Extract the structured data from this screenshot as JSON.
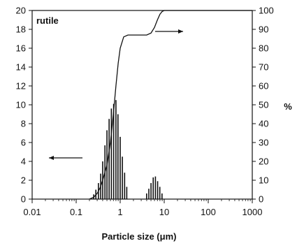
{
  "chart_data": {
    "type": "bar",
    "annotation": "rutile",
    "xlabel": "Particle size (μm)",
    "ylabel_right": "%",
    "x_scale": "log",
    "xlim": [
      0.01,
      1000
    ],
    "ylim_left": [
      0,
      20
    ],
    "ylim_right": [
      0,
      100
    ],
    "x_tick_labels": [
      "0.01",
      "0.1",
      "1",
      "10",
      "100",
      "1000"
    ],
    "y_left_tick_labels": [
      "0",
      "2",
      "4",
      "6",
      "8",
      "10",
      "12",
      "14",
      "16",
      "18",
      "20"
    ],
    "y_right_tick_labels": [
      "0",
      "10",
      "20",
      "30",
      "40",
      "50",
      "60",
      "70",
      "80",
      "90",
      "100"
    ],
    "series": [
      {
        "type": "bar",
        "axis": "left",
        "x": [
          0.25,
          0.28,
          0.32,
          0.36,
          0.4,
          0.45,
          0.5,
          0.56,
          0.63,
          0.71,
          0.8,
          0.89,
          1.0,
          1.12,
          1.26,
          1.41,
          3.98,
          4.47,
          5.01,
          5.62,
          6.31,
          7.08,
          7.94,
          8.91
        ],
        "values": [
          0.5,
          1.0,
          1.7,
          2.7,
          4.0,
          5.7,
          7.3,
          8.5,
          9.6,
          10.1,
          10.5,
          9.0,
          6.6,
          4.5,
          2.8,
          1.3,
          0.6,
          1.1,
          1.7,
          2.3,
          2.4,
          1.9,
          1.3,
          0.6
        ]
      },
      {
        "type": "line",
        "axis": "right",
        "x": [
          0.2,
          0.25,
          0.3,
          0.35,
          0.4,
          0.5,
          0.6,
          0.7,
          0.8,
          0.9,
          1.0,
          1.2,
          1.5,
          2.0,
          3.0,
          4.0,
          5.0,
          6.0,
          7.0,
          8.0,
          9.0,
          10.0,
          20.0,
          100.0,
          1000.0
        ],
        "values": [
          0,
          1,
          3,
          6,
          10,
          18,
          30,
          45,
          60,
          72,
          80,
          86,
          87,
          87,
          87,
          87,
          88,
          91,
          95,
          98,
          99.5,
          100,
          100,
          100,
          100
        ]
      }
    ],
    "annotations": [
      {
        "text": "arrow-right",
        "meaning": "curve uses right axis"
      },
      {
        "text": "arrow-left",
        "meaning": "bars use left axis"
      }
    ]
  }
}
